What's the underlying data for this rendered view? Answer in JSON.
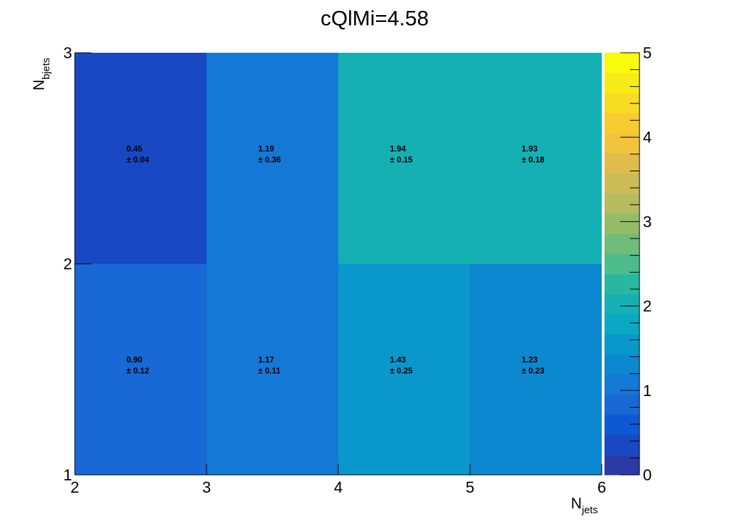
{
  "chart_data": {
    "type": "heatmap",
    "title": "cQlMi=4.58",
    "xlabel": {
      "main": "N",
      "sub": "jets"
    },
    "ylabel": {
      "main": "N",
      "sub": "bjets"
    },
    "x_edges": [
      2,
      3,
      4,
      5,
      6
    ],
    "y_edges": [
      1,
      2,
      3
    ],
    "x_ticks": [
      "2",
      "3",
      "4",
      "5",
      "6"
    ],
    "y_ticks": [
      "1",
      "2",
      "3"
    ],
    "xlim": [
      2,
      6
    ],
    "ylim": [
      1,
      3
    ],
    "zlim": [
      0,
      5
    ],
    "colorbar_ticks": [
      "0",
      "1",
      "2",
      "3",
      "4",
      "5"
    ],
    "cells": [
      {
        "x": [
          2,
          3
        ],
        "y": [
          2,
          3
        ],
        "value": 0.45,
        "error": 0.04,
        "value_text": "0.45",
        "error_text": "± 0.04"
      },
      {
        "x": [
          3,
          4
        ],
        "y": [
          2,
          3
        ],
        "value": 1.19,
        "error": 0.36,
        "value_text": "1.19",
        "error_text": "± 0.36"
      },
      {
        "x": [
          4,
          5
        ],
        "y": [
          2,
          3
        ],
        "value": 1.94,
        "error": 0.15,
        "value_text": "1.94",
        "error_text": "± 0.15"
      },
      {
        "x": [
          5,
          6
        ],
        "y": [
          2,
          3
        ],
        "value": 1.93,
        "error": 0.18,
        "value_text": "1.93",
        "error_text": "± 0.18"
      },
      {
        "x": [
          2,
          3
        ],
        "y": [
          1,
          2
        ],
        "value": 0.9,
        "error": 0.12,
        "value_text": "0.90",
        "error_text": "± 0.12"
      },
      {
        "x": [
          3,
          4
        ],
        "y": [
          1,
          2
        ],
        "value": 1.17,
        "error": 0.11,
        "value_text": "1.17",
        "error_text": "± 0.11"
      },
      {
        "x": [
          4,
          5
        ],
        "y": [
          1,
          2
        ],
        "value": 1.43,
        "error": 0.25,
        "value_text": "1.43",
        "error_text": "± 0.25"
      },
      {
        "x": [
          5,
          6
        ],
        "y": [
          1,
          2
        ],
        "value": 1.23,
        "error": 0.23,
        "value_text": "1.23",
        "error_text": "± 0.23"
      }
    ],
    "palette": [
      "#2c3aa6",
      "#1848c4",
      "#0f58d4",
      "#1868d6",
      "#1478d6",
      "#0c88d0",
      "#0a98cc",
      "#0aa8c4",
      "#14b0b4",
      "#28b8a0",
      "#4cbc8c",
      "#70bc78",
      "#94bc68",
      "#b4bc60",
      "#ccbc58",
      "#e0bc4c",
      "#f0c43c",
      "#f8cc30",
      "#f8dc24",
      "#f8ec18",
      "#f8fc0c"
    ],
    "grid": false,
    "colorbar": "right"
  }
}
